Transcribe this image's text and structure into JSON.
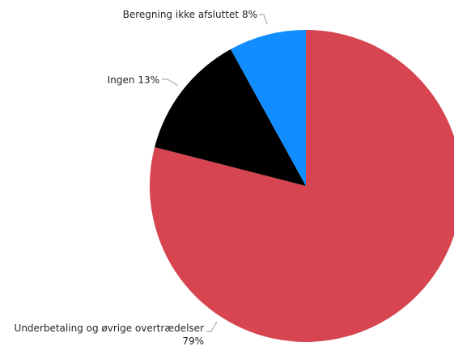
{
  "chart_data": {
    "type": "pie",
    "categories": [
      "Underbetaling og øvrige overtrædelser",
      "Ingen",
      "Beregning ikke afsluttet"
    ],
    "values": [
      79,
      13,
      8
    ],
    "value_labels": [
      "79%",
      "13%",
      "8%"
    ],
    "colors": [
      "#d64550",
      "#000000",
      "#118dff"
    ],
    "start_angle": "12 o'clock",
    "direction": "clockwise",
    "legend": "none",
    "title": ""
  }
}
